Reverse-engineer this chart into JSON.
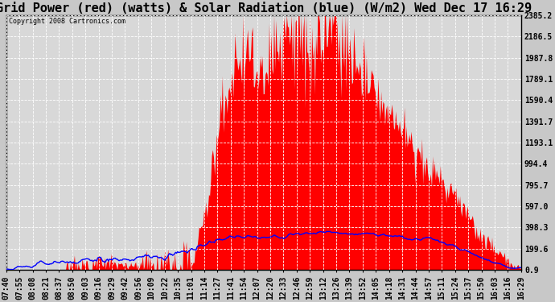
{
  "title": "Grid Power (red) (watts) & Solar Radiation (blue) (W/m2) Wed Dec 17 16:29",
  "copyright_text": "Copyright 2008 Cartronics.com",
  "background_color": "#c8c8c8",
  "plot_bg_color": "#d8d8d8",
  "grid_color": "#ffffff",
  "y_ticks": [
    0.9,
    199.6,
    398.3,
    597.0,
    795.7,
    994.4,
    1193.1,
    1391.7,
    1590.4,
    1789.1,
    1987.8,
    2186.5,
    2385.2
  ],
  "x_tick_labels": [
    "07:40",
    "07:55",
    "08:08",
    "08:21",
    "08:37",
    "08:50",
    "09:03",
    "09:16",
    "09:29",
    "09:42",
    "09:56",
    "10:09",
    "10:22",
    "10:35",
    "11:01",
    "11:14",
    "11:27",
    "11:41",
    "11:54",
    "12:07",
    "12:20",
    "12:33",
    "12:46",
    "12:59",
    "13:12",
    "13:26",
    "13:39",
    "13:52",
    "14:05",
    "14:18",
    "14:31",
    "14:44",
    "14:57",
    "15:11",
    "15:24",
    "15:37",
    "15:50",
    "16:03",
    "16:16",
    "16:29"
  ],
  "red_fill_color": "#ff0000",
  "blue_line_color": "#0000ff",
  "title_fontsize": 11,
  "tick_fontsize": 7,
  "y_min": 0.9,
  "y_max": 2385.2
}
